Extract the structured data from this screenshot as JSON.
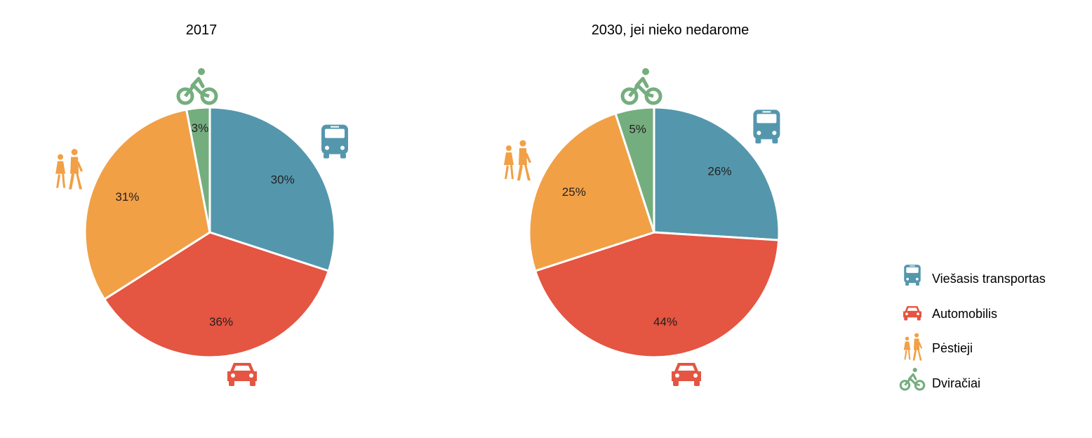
{
  "colors": {
    "bus": "#5497ad",
    "car": "#e45542",
    "walk": "#f1a046",
    "bike": "#75ae7e"
  },
  "legend": [
    {
      "key": "bus",
      "label": "Viešasis transportas",
      "icon": "bus-icon"
    },
    {
      "key": "car",
      "label": "Automobilis",
      "icon": "car-icon"
    },
    {
      "key": "walk",
      "label": "Pėstieji",
      "icon": "pedestrians-icon"
    },
    {
      "key": "bike",
      "label": "Dviračiai",
      "icon": "bicycle-icon"
    }
  ],
  "chart_data": [
    {
      "type": "pie",
      "title": "2017",
      "categories": [
        "Viešasis transportas",
        "Automobilis",
        "Pėstieji",
        "Dviračiai"
      ],
      "keys": [
        "bus",
        "car",
        "walk",
        "bike"
      ],
      "values": [
        30,
        36,
        31,
        3
      ],
      "labels": [
        "30%",
        "36%",
        "31%",
        "3%"
      ]
    },
    {
      "type": "pie",
      "title": "2030, jei nieko nedarome",
      "categories": [
        "Viešasis transportas",
        "Automobilis",
        "Pėstieji",
        "Dviračiai"
      ],
      "keys": [
        "bus",
        "car",
        "walk",
        "bike"
      ],
      "values": [
        26,
        44,
        25,
        5
      ],
      "labels": [
        "26%",
        "44%",
        "25%",
        "5%"
      ]
    }
  ]
}
